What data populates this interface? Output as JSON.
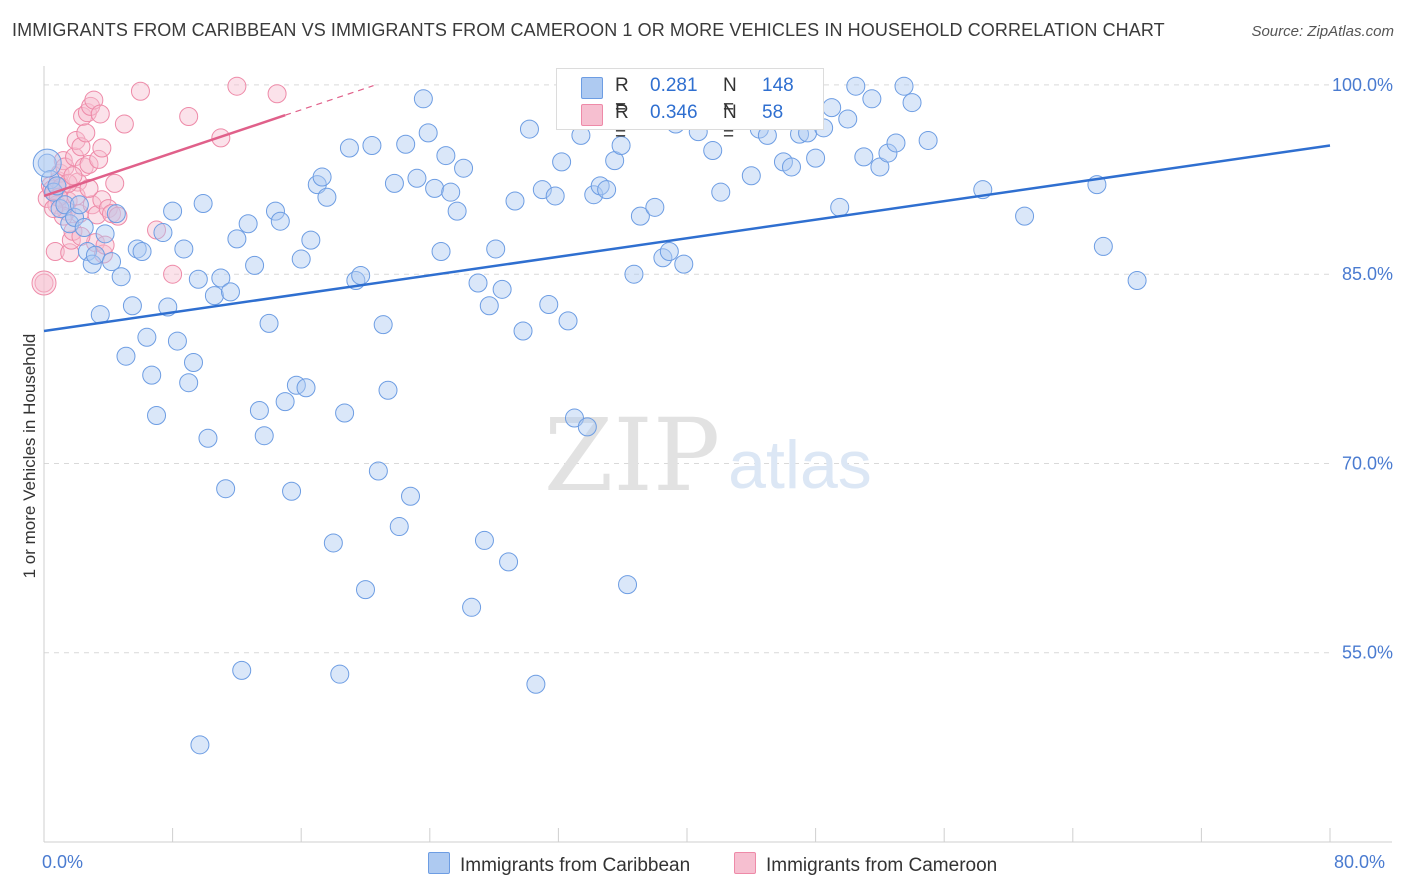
{
  "title": "IMMIGRANTS FROM CARIBBEAN VS IMMIGRANTS FROM CAMEROON 1 OR MORE VEHICLES IN HOUSEHOLD CORRELATION CHART",
  "source": "Source: ZipAtlas.com",
  "watermark": {
    "zip": "ZIP",
    "atlas": "atlas"
  },
  "colors": {
    "blue": "#6d9de3",
    "blue_fill": "#aecaf1",
    "blue_line": "#2f6fd0",
    "pink": "#ee8aa8",
    "pink_fill": "#f6bfd0",
    "pink_line": "#e0608a",
    "axis_text": "#4a7bd0",
    "grid": "#d9d9d9"
  },
  "legend": {
    "rows": [
      {
        "r_label": "R =",
        "r_value": "0.281",
        "n_label": "N =",
        "n_value": "148"
      },
      {
        "r_label": "R =",
        "r_value": "0.346",
        "n_label": "N =",
        "n_value": "58"
      }
    ]
  },
  "bottom_legend": {
    "blue": "Immigrants from Caribbean",
    "pink": "Immigrants from Cameroon"
  },
  "chart_data": {
    "type": "scatter",
    "title": "IMMIGRANTS FROM CARIBBEAN VS IMMIGRANTS FROM CAMEROON 1 OR MORE VEHICLES IN HOUSEHOLD CORRELATION CHART",
    "xlabel": "",
    "ylabel": "1 or more Vehicles in Household",
    "xlim": [
      0,
      80
    ],
    "ylim": [
      40,
      101.5
    ],
    "x_tick_labels": [
      "0.0%",
      "80.0%"
    ],
    "y_ticks": [
      55,
      70,
      85,
      100
    ],
    "y_tick_labels": [
      "55.0%",
      "70.0%",
      "85.0%",
      "100.0%"
    ],
    "grid": true,
    "series": [
      {
        "name": "Immigrants from Caribbean",
        "color": "#6d9de3",
        "trend": {
          "x": [
            0,
            80
          ],
          "y": [
            80.5,
            95.2
          ]
        },
        "points": [
          [
            0.2,
            93.8
          ],
          [
            0.4,
            92.5
          ],
          [
            0.6,
            91.5
          ],
          [
            0.8,
            92.0
          ],
          [
            1.0,
            90.2
          ],
          [
            1.3,
            90.5
          ],
          [
            1.6,
            89.0
          ],
          [
            1.9,
            89.5
          ],
          [
            2.2,
            90.5
          ],
          [
            2.5,
            88.7
          ],
          [
            2.7,
            86.8
          ],
          [
            3.0,
            85.8
          ],
          [
            3.2,
            86.5
          ],
          [
            3.5,
            81.8
          ],
          [
            3.8,
            88.2
          ],
          [
            4.2,
            86.0
          ],
          [
            4.5,
            89.8
          ],
          [
            4.8,
            84.8
          ],
          [
            5.1,
            78.5
          ],
          [
            5.5,
            82.5
          ],
          [
            5.8,
            87.0
          ],
          [
            6.1,
            86.8
          ],
          [
            6.4,
            80.0
          ],
          [
            6.7,
            77.0
          ],
          [
            7.0,
            73.8
          ],
          [
            7.4,
            88.3
          ],
          [
            7.7,
            82.4
          ],
          [
            8.0,
            90.0
          ],
          [
            8.3,
            79.7
          ],
          [
            8.7,
            87.0
          ],
          [
            9.0,
            76.4
          ],
          [
            9.3,
            78.0
          ],
          [
            9.6,
            84.6
          ],
          [
            9.9,
            90.6
          ],
          [
            10.2,
            72.0
          ],
          [
            10.6,
            83.3
          ],
          [
            11.0,
            84.7
          ],
          [
            11.3,
            68.0
          ],
          [
            11.6,
            83.6
          ],
          [
            12.0,
            87.8
          ],
          [
            12.3,
            53.6
          ],
          [
            12.7,
            89.0
          ],
          [
            13.1,
            85.7
          ],
          [
            13.4,
            74.2
          ],
          [
            13.7,
            72.2
          ],
          [
            14.0,
            81.1
          ],
          [
            14.4,
            90.0
          ],
          [
            14.7,
            89.2
          ],
          [
            15.0,
            74.9
          ],
          [
            15.4,
            67.8
          ],
          [
            15.7,
            76.2
          ],
          [
            16.0,
            86.2
          ],
          [
            16.3,
            76.0
          ],
          [
            16.6,
            87.7
          ],
          [
            17.0,
            92.1
          ],
          [
            17.3,
            92.7
          ],
          [
            17.6,
            91.1
          ],
          [
            18.0,
            63.7
          ],
          [
            18.4,
            53.3
          ],
          [
            18.7,
            74.0
          ],
          [
            19.0,
            95.0
          ],
          [
            19.4,
            84.5
          ],
          [
            19.7,
            84.9
          ],
          [
            20.0,
            60.0
          ],
          [
            20.4,
            95.2
          ],
          [
            20.8,
            69.4
          ],
          [
            21.1,
            81.0
          ],
          [
            21.4,
            75.8
          ],
          [
            21.8,
            92.2
          ],
          [
            22.1,
            65.0
          ],
          [
            22.5,
            95.3
          ],
          [
            22.8,
            67.4
          ],
          [
            23.2,
            92.6
          ],
          [
            23.6,
            98.9
          ],
          [
            23.9,
            96.2
          ],
          [
            24.3,
            91.8
          ],
          [
            24.7,
            86.8
          ],
          [
            25.0,
            94.4
          ],
          [
            25.3,
            91.5
          ],
          [
            25.7,
            90.0
          ],
          [
            26.1,
            93.4
          ],
          [
            26.6,
            58.6
          ],
          [
            27.0,
            84.3
          ],
          [
            27.4,
            63.9
          ],
          [
            27.7,
            82.5
          ],
          [
            28.1,
            87.0
          ],
          [
            28.5,
            83.8
          ],
          [
            28.9,
            62.2
          ],
          [
            29.3,
            90.8
          ],
          [
            29.8,
            80.5
          ],
          [
            30.2,
            96.5
          ],
          [
            30.6,
            52.5
          ],
          [
            31.0,
            91.7
          ],
          [
            31.4,
            82.6
          ],
          [
            31.8,
            91.2
          ],
          [
            32.2,
            93.9
          ],
          [
            32.6,
            81.3
          ],
          [
            33.0,
            73.6
          ],
          [
            33.4,
            96.0
          ],
          [
            33.8,
            72.9
          ],
          [
            34.2,
            91.3
          ],
          [
            34.6,
            92.0
          ],
          [
            35.0,
            91.7
          ],
          [
            35.5,
            94.0
          ],
          [
            35.9,
            95.2
          ],
          [
            36.3,
            60.4
          ],
          [
            36.7,
            85.0
          ],
          [
            37.1,
            89.6
          ],
          [
            37.5,
            97.2
          ],
          [
            38.0,
            90.3
          ],
          [
            38.5,
            86.3
          ],
          [
            38.9,
            86.8
          ],
          [
            39.3,
            96.9
          ],
          [
            39.8,
            85.8
          ],
          [
            40.2,
            97.3
          ],
          [
            40.7,
            96.3
          ],
          [
            41.1,
            99.2
          ],
          [
            41.6,
            94.8
          ],
          [
            42.1,
            91.5
          ],
          [
            42.6,
            99.4
          ],
          [
            43.1,
            99.9
          ],
          [
            43.5,
            98.1
          ],
          [
            44.0,
            92.8
          ],
          [
            44.5,
            96.5
          ],
          [
            45.0,
            96.0
          ],
          [
            45.5,
            97.6
          ],
          [
            46.0,
            93.9
          ],
          [
            46.5,
            93.5
          ],
          [
            47.0,
            96.1
          ],
          [
            47.5,
            96.2
          ],
          [
            48.0,
            94.2
          ],
          [
            48.5,
            96.6
          ],
          [
            49.0,
            98.2
          ],
          [
            49.5,
            90.3
          ],
          [
            50.0,
            97.3
          ],
          [
            50.5,
            99.9
          ],
          [
            51.0,
            94.3
          ],
          [
            51.5,
            98.9
          ],
          [
            52.0,
            93.5
          ],
          [
            52.5,
            94.6
          ],
          [
            53.0,
            95.4
          ],
          [
            53.5,
            99.9
          ],
          [
            54.0,
            98.6
          ],
          [
            55.0,
            95.6
          ],
          [
            58.4,
            91.7
          ],
          [
            61.0,
            89.6
          ],
          [
            65.5,
            92.1
          ],
          [
            65.9,
            87.2
          ],
          [
            68.0,
            84.5
          ],
          [
            9.7,
            47.7
          ]
        ]
      },
      {
        "name": "Immigrants from Cameroon",
        "color": "#ee8aa8",
        "trend": {
          "x": [
            0,
            15
          ],
          "y": [
            91.2,
            97.6
          ]
        },
        "points": [
          [
            0.0,
            84.3
          ],
          [
            0.2,
            91.0
          ],
          [
            0.4,
            92.0
          ],
          [
            0.5,
            91.7
          ],
          [
            0.6,
            91.5
          ],
          [
            0.7,
            86.8
          ],
          [
            0.8,
            90.5
          ],
          [
            0.9,
            92.4
          ],
          [
            1.0,
            93.0
          ],
          [
            1.1,
            91.9
          ],
          [
            1.2,
            94.0
          ],
          [
            1.3,
            93.5
          ],
          [
            1.4,
            90.0
          ],
          [
            1.5,
            90.8
          ],
          [
            1.6,
            86.7
          ],
          [
            1.7,
            87.7
          ],
          [
            1.8,
            88.4
          ],
          [
            1.9,
            94.3
          ],
          [
            2.0,
            95.6
          ],
          [
            2.1,
            92.3
          ],
          [
            2.2,
            89.8
          ],
          [
            2.3,
            95.1
          ],
          [
            2.4,
            97.5
          ],
          [
            2.5,
            93.5
          ],
          [
            2.6,
            96.2
          ],
          [
            2.7,
            97.8
          ],
          [
            2.8,
            93.7
          ],
          [
            2.9,
            98.3
          ],
          [
            3.0,
            90.5
          ],
          [
            3.1,
            98.8
          ],
          [
            3.2,
            87.5
          ],
          [
            3.3,
            89.7
          ],
          [
            3.4,
            94.1
          ],
          [
            3.5,
            97.7
          ],
          [
            3.6,
            90.9
          ],
          [
            3.7,
            86.6
          ],
          [
            3.8,
            87.3
          ],
          [
            4.0,
            90.2
          ],
          [
            4.2,
            89.8
          ],
          [
            4.4,
            92.2
          ],
          [
            4.6,
            89.6
          ],
          [
            5.0,
            96.9
          ],
          [
            6.0,
            99.5
          ],
          [
            7.0,
            88.5
          ],
          [
            8.0,
            85.0
          ],
          [
            9.0,
            97.5
          ],
          [
            11.0,
            95.8
          ],
          [
            12.0,
            99.9
          ],
          [
            14.5,
            99.3
          ],
          [
            2.0,
            91.2
          ],
          [
            1.5,
            92.2
          ],
          [
            0.9,
            91.1
          ],
          [
            1.2,
            89.6
          ],
          [
            2.3,
            88.0
          ],
          [
            3.6,
            95.0
          ],
          [
            0.6,
            90.2
          ],
          [
            1.8,
            92.8
          ],
          [
            2.8,
            91.8
          ]
        ]
      }
    ]
  }
}
